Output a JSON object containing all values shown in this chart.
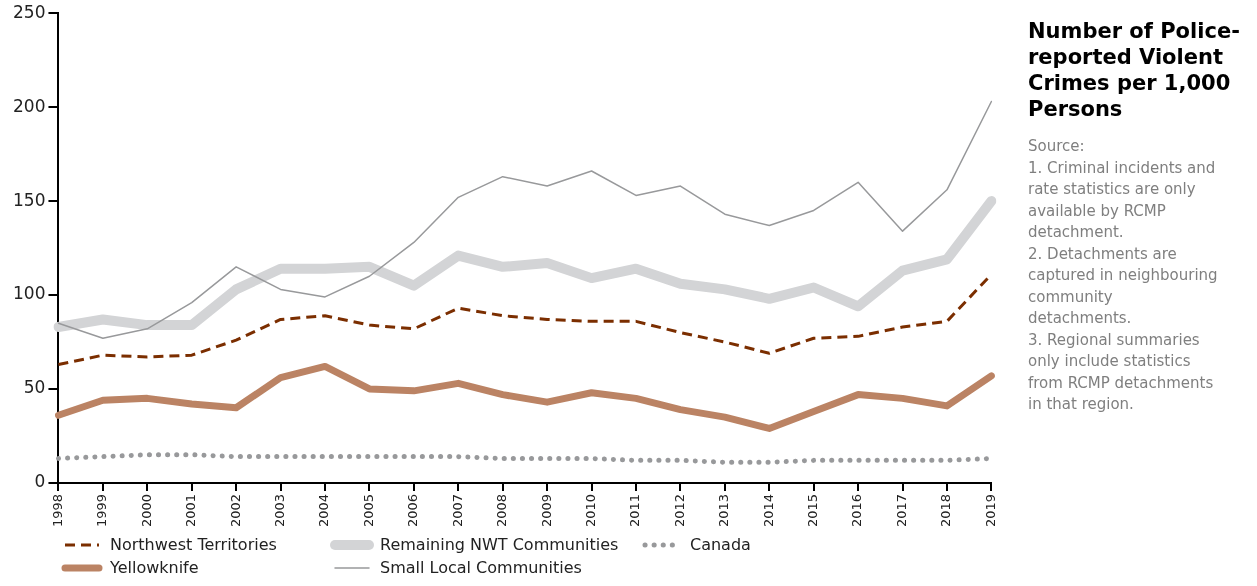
{
  "chart_data": {
    "type": "line",
    "title": "Number of Police-reported Violent Crimes per 1,000 Persons",
    "annotations": [
      "Source:",
      "1. Criminal incidents and rate statistics are only available by RCMP detachment.",
      "2. Detachments are captured in neighbouring community detachments.",
      "3. Regional summaries only include statistics from RCMP detachments in that region."
    ],
    "categories": [
      "1998",
      "1999",
      "2000",
      "2001",
      "2002",
      "2003",
      "2004",
      "2005",
      "2006",
      "2007",
      "2008",
      "2009",
      "2010",
      "2011",
      "2012",
      "2013",
      "2014",
      "2015",
      "2016",
      "2017",
      "2018",
      "2019"
    ],
    "ylim": [
      0,
      250
    ],
    "yticks": [
      0,
      50,
      100,
      150,
      200,
      250
    ],
    "grid": false,
    "legend": "bottom",
    "marker": "none",
    "series": [
      {
        "name": "Northwest Territories",
        "color": "#7b2e00",
        "line_style": "dashed",
        "values": [
          63,
          68,
          67,
          68,
          76,
          87,
          89,
          84,
          82,
          93,
          89,
          87,
          86,
          86,
          80,
          75,
          69,
          77,
          78,
          83,
          86,
          111
        ]
      },
      {
        "name": "Remaining NWT Communities",
        "color": "#d3d4d6",
        "line_style": "solid",
        "values": [
          83,
          87,
          84,
          84,
          103,
          114,
          114,
          115,
          105,
          121,
          115,
          117,
          109,
          114,
          106,
          103,
          98,
          104,
          94,
          113,
          119,
          150
        ]
      },
      {
        "name": "Canada",
        "color": "#98999b",
        "line_style": "dotted",
        "values": [
          13,
          14,
          15,
          15,
          14,
          14,
          14,
          14,
          14,
          14,
          13,
          13,
          13,
          12,
          12,
          11,
          11,
          12,
          12,
          12,
          12,
          13
        ]
      },
      {
        "name": "Yellowknife",
        "color": "#bb8364",
        "line_style": "solid",
        "values": [
          36,
          44,
          45,
          42,
          40,
          56,
          62,
          50,
          49,
          53,
          47,
          43,
          48,
          45,
          39,
          35,
          29,
          38,
          47,
          45,
          41,
          57
        ]
      },
      {
        "name": "Small Local Communities",
        "color": "#98999b",
        "line_style": "solid",
        "values": [
          85,
          77,
          82,
          96,
          115,
          103,
          99,
          110,
          128,
          152,
          163,
          158,
          166,
          153,
          158,
          143,
          137,
          145,
          160,
          134,
          156,
          203
        ]
      }
    ]
  }
}
